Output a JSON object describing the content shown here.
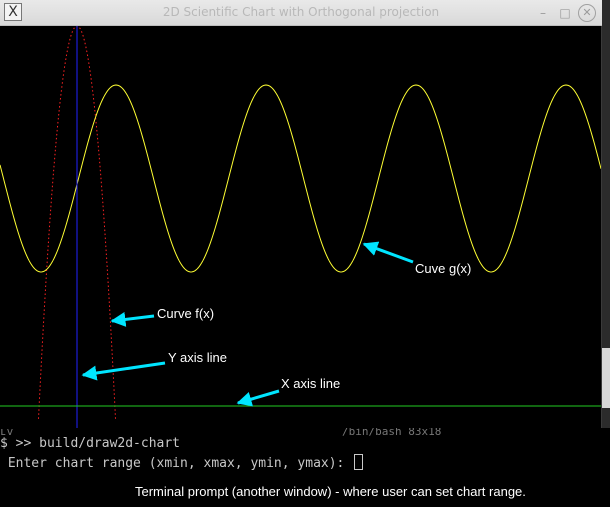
{
  "window": {
    "title": "2D Scientific Chart with Orthogonal projection",
    "icon": "x-window-icon",
    "buttons": {
      "minimize": "–",
      "maximize": "□",
      "close": "✕"
    }
  },
  "annotations": {
    "curve_g": "Cuve g(x)",
    "curve_f": "Curve f(x)",
    "y_axis": "Y axis line",
    "x_axis": "X axis line",
    "terminal_note": "Terminal prompt (another window) - where user can set chart range."
  },
  "terminal": {
    "peek_left": "ʟv",
    "peek_right": "/bin/bash 83x18",
    "command": "$ >> build/draw2d-chart",
    "prompt": " Enter chart range (xmin, xmax, ymin, ymax): "
  },
  "colors": {
    "curve_g": "#ffff33",
    "curve_f": "#ff2222",
    "y_axis": "#2222ff",
    "x_axis": "#22cc22",
    "arrow": "#00e5ff"
  }
}
